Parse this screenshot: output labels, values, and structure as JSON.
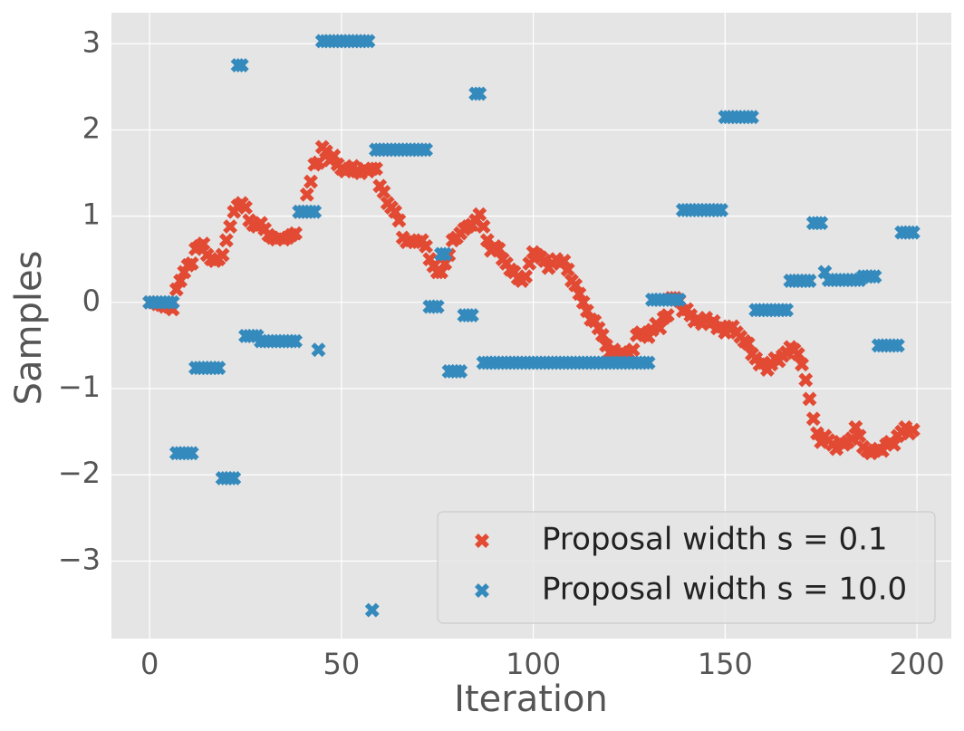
{
  "chart_data": {
    "type": "scatter",
    "xlabel": "Iteration",
    "ylabel": "Samples",
    "xlim": [
      -9.95,
      208.95
    ],
    "ylim": [
      -3.9,
      3.36
    ],
    "xticks": [
      0,
      50,
      100,
      150,
      200
    ],
    "yticks": [
      {
        "value": -3,
        "label": "−3"
      },
      {
        "value": -2,
        "label": "−2"
      },
      {
        "value": -1,
        "label": "−1"
      },
      0,
      1,
      2,
      3
    ],
    "grid": true,
    "legend": "lower right",
    "x": [
      0,
      1,
      2,
      3,
      4,
      5,
      6,
      7,
      8,
      9,
      10,
      11,
      12,
      13,
      14,
      15,
      16,
      17,
      18,
      19,
      20,
      21,
      22,
      23,
      24,
      25,
      26,
      27,
      28,
      29,
      30,
      31,
      32,
      33,
      34,
      35,
      36,
      37,
      38,
      39,
      40,
      41,
      42,
      43,
      44,
      45,
      46,
      47,
      48,
      49,
      50,
      51,
      52,
      53,
      54,
      55,
      56,
      57,
      58,
      59,
      60,
      61,
      62,
      63,
      64,
      65,
      66,
      67,
      68,
      69,
      70,
      71,
      72,
      73,
      74,
      75,
      76,
      77,
      78,
      79,
      80,
      81,
      82,
      83,
      84,
      85,
      86,
      87,
      88,
      89,
      90,
      91,
      92,
      93,
      94,
      95,
      96,
      97,
      98,
      99,
      100,
      101,
      102,
      103,
      104,
      105,
      106,
      107,
      108,
      109,
      110,
      111,
      112,
      113,
      114,
      115,
      116,
      117,
      118,
      119,
      120,
      121,
      122,
      123,
      124,
      125,
      126,
      127,
      128,
      129,
      130,
      131,
      132,
      133,
      134,
      135,
      136,
      137,
      138,
      139,
      140,
      141,
      142,
      143,
      144,
      145,
      146,
      147,
      148,
      149,
      150,
      151,
      152,
      153,
      154,
      155,
      156,
      157,
      158,
      159,
      160,
      161,
      162,
      163,
      164,
      165,
      166,
      167,
      168,
      169,
      170,
      171,
      172,
      173,
      174,
      175,
      176,
      177,
      178,
      179,
      180,
      181,
      182,
      183,
      184,
      185,
      186,
      187,
      188,
      189,
      190,
      191,
      192,
      193,
      194,
      195,
      196,
      197,
      198,
      199
    ],
    "series": [
      {
        "name": "Proposal width s = 0.1",
        "color": "#e24a33",
        "values": [
          0,
          0,
          -0.02,
          -0.03,
          -0.05,
          -0.05,
          -0.08,
          0.15,
          0.25,
          0.35,
          0.43,
          0.45,
          0.62,
          0.65,
          0.68,
          0.55,
          0.5,
          0.48,
          0.5,
          0.55,
          0.72,
          0.88,
          1.05,
          1.12,
          1.15,
          1.1,
          0.95,
          0.9,
          0.88,
          0.92,
          0.85,
          0.78,
          0.75,
          0.73,
          0.75,
          0.73,
          0.75,
          0.78,
          0.8,
          1.05,
          1.05,
          1.25,
          1.4,
          1.6,
          1.62,
          1.8,
          1.75,
          1.65,
          1.7,
          1.6,
          1.55,
          1.52,
          1.55,
          1.58,
          1.52,
          1.5,
          1.55,
          1.52,
          1.55,
          1.55,
          1.35,
          1.28,
          1.15,
          1.1,
          1.05,
          0.95,
          0.75,
          0.7,
          0.72,
          0.7,
          0.7,
          0.72,
          0.65,
          0.5,
          0.42,
          0.35,
          0.35,
          0.45,
          0.55,
          0.72,
          0.75,
          0.8,
          0.85,
          0.88,
          0.9,
          0.95,
          1.02,
          0.88,
          0.72,
          0.6,
          0.65,
          0.62,
          0.5,
          0.45,
          0.38,
          0.35,
          0.28,
          0.25,
          0.3,
          0.45,
          0.58,
          0.55,
          0.52,
          0.48,
          0.4,
          0.45,
          0.5,
          0.45,
          0.48,
          0.38,
          0.25,
          0.2,
          0.1,
          0,
          -0.1,
          -0.2,
          -0.22,
          -0.3,
          -0.38,
          -0.5,
          -0.58,
          -0.55,
          -0.6,
          -0.58,
          -0.62,
          -0.6,
          -0.55,
          -0.38,
          -0.35,
          -0.38,
          -0.4,
          -0.32,
          -0.25,
          -0.3,
          -0.18,
          -0.15,
          0.05,
          0.05,
          0.02,
          -0.1,
          -0.08,
          -0.15,
          -0.22,
          -0.2,
          -0.25,
          -0.18,
          -0.25,
          -0.22,
          -0.3,
          -0.28,
          -0.35,
          -0.3,
          -0.28,
          -0.35,
          -0.4,
          -0.45,
          -0.48,
          -0.6,
          -0.65,
          -0.72,
          -0.7,
          -0.78,
          -0.72,
          -0.65,
          -0.68,
          -0.62,
          -0.58,
          -0.52,
          -0.55,
          -0.6,
          -0.72,
          -0.9,
          -1.12,
          -1.35,
          -1.52,
          -1.62,
          -1.55,
          -1.6,
          -1.65,
          -1.7,
          -1.62,
          -1.65,
          -1.62,
          -1.58,
          -1.45,
          -1.55,
          -1.68,
          -1.72,
          -1.75,
          -1.72,
          -1.7,
          -1.72,
          -1.65,
          -1.62,
          -1.65,
          -1.55,
          -1.5,
          -1.45,
          -1.52,
          -1.48
        ]
      },
      {
        "name": "Proposal width s = 10.0",
        "color": "#348abd",
        "values": [
          0,
          0,
          0,
          0,
          0,
          0,
          0,
          -1.75,
          -1.75,
          -1.75,
          -1.75,
          -1.75,
          -0.76,
          -0.76,
          -0.76,
          -0.76,
          -0.76,
          -0.76,
          -0.76,
          -2.04,
          -2.04,
          -2.04,
          -2.04,
          2.75,
          2.75,
          -0.39,
          -0.39,
          -0.39,
          -0.39,
          -0.45,
          -0.45,
          -0.45,
          -0.45,
          -0.45,
          -0.45,
          -0.45,
          -0.45,
          -0.45,
          -0.45,
          1.05,
          1.05,
          1.05,
          1.05,
          1.05,
          -0.55,
          3.03,
          3.03,
          3.03,
          3.03,
          3.03,
          3.03,
          3.03,
          3.03,
          3.03,
          3.03,
          3.03,
          3.03,
          3.03,
          -3.57,
          1.77,
          1.77,
          1.77,
          1.77,
          1.77,
          1.77,
          1.77,
          1.77,
          1.77,
          1.77,
          1.77,
          1.77,
          1.77,
          1.77,
          -0.05,
          -0.05,
          -0.05,
          0.56,
          0.56,
          -0.8,
          -0.8,
          -0.8,
          -0.8,
          -0.15,
          -0.15,
          -0.15,
          2.42,
          2.42,
          -0.7,
          -0.7,
          -0.7,
          -0.7,
          -0.7,
          -0.7,
          -0.7,
          -0.7,
          -0.7,
          -0.7,
          -0.7,
          -0.7,
          -0.7,
          -0.7,
          -0.7,
          -0.7,
          -0.7,
          -0.7,
          -0.7,
          -0.7,
          -0.7,
          -0.7,
          -0.7,
          -0.7,
          -0.7,
          -0.7,
          -0.7,
          -0.7,
          -0.7,
          -0.7,
          -0.7,
          -0.7,
          -0.7,
          -0.7,
          -0.7,
          -0.7,
          -0.7,
          -0.7,
          -0.7,
          -0.7,
          -0.7,
          -0.7,
          -0.7,
          -0.7,
          0.03,
          0.03,
          0.03,
          0.03,
          0.03,
          0.03,
          0.03,
          0.03,
          1.07,
          1.07,
          1.07,
          1.07,
          1.07,
          1.07,
          1.07,
          1.07,
          1.07,
          1.07,
          1.07,
          2.15,
          2.15,
          2.15,
          2.15,
          2.15,
          2.15,
          2.15,
          2.15,
          -0.09,
          -0.09,
          -0.09,
          -0.09,
          -0.09,
          -0.09,
          -0.09,
          -0.09,
          -0.09,
          0.25,
          0.25,
          0.25,
          0.25,
          0.25,
          0.25,
          0.92,
          0.92,
          0.92,
          0.35,
          0.26,
          0.26,
          0.26,
          0.26,
          0.26,
          0.26,
          0.26,
          0.26,
          0.26,
          0.3,
          0.3,
          0.3,
          0.3,
          -0.5,
          -0.5,
          -0.5,
          -0.5,
          -0.5,
          -0.5,
          0.81,
          0.81,
          0.81,
          0.81
        ]
      }
    ]
  }
}
